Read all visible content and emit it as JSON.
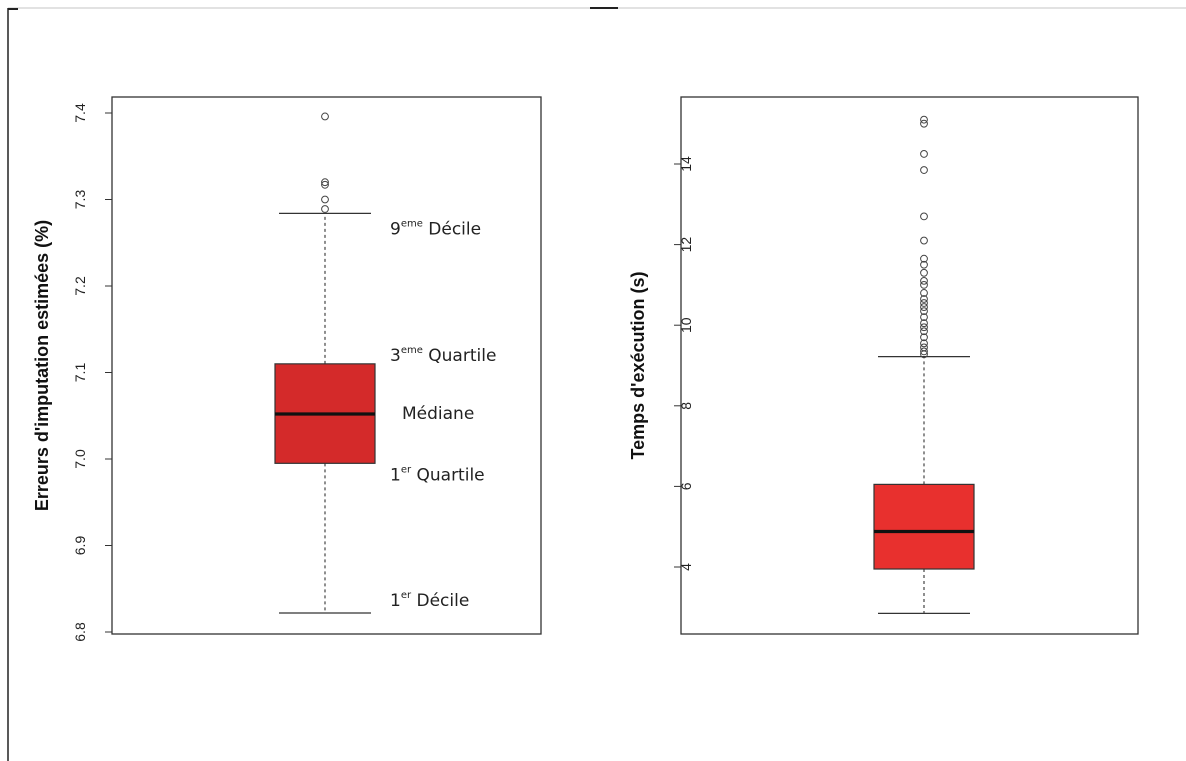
{
  "chart_data": [
    {
      "type": "box",
      "ylabel": "Erreurs d'imputation estimées (%)",
      "ylim": [
        6.8,
        7.4
      ],
      "yticks": [
        6.8,
        6.9,
        7.0,
        7.1,
        7.2,
        7.3,
        7.4
      ],
      "ytick_labels": [
        "6.8",
        "6.9",
        "7.0",
        "7.1",
        "7.2",
        "7.3",
        "7.4"
      ],
      "grid": false,
      "box": {
        "whisker_low": 6.822,
        "q1": 6.995,
        "median": 7.052,
        "q3": 7.11,
        "whisker_high": 7.284,
        "outliers": [
          7.289,
          7.3,
          7.317,
          7.32,
          7.396
        ]
      },
      "color": "#d42a2a",
      "annotations": [
        {
          "target": "whisker_high",
          "base": "9",
          "sup": "eme",
          "text": " Décile"
        },
        {
          "target": "q3",
          "base": "3",
          "sup": "eme",
          "text": " Quartile"
        },
        {
          "target": "median",
          "base": "",
          "sup": "",
          "text": "Médiane"
        },
        {
          "target": "q1",
          "base": "1",
          "sup": "er",
          "text": " Quartile"
        },
        {
          "target": "whisker_low",
          "base": "1",
          "sup": "er",
          "text": " Décile"
        }
      ]
    },
    {
      "type": "box",
      "ylabel": "Temps d'exécution (s)",
      "ylim": [
        2.3,
        15.6
      ],
      "yticks": [
        4,
        6,
        8,
        10,
        12,
        14
      ],
      "ytick_labels": [
        "4",
        "6",
        "8",
        "10",
        "12",
        "14"
      ],
      "grid": false,
      "box": {
        "whisker_low": 2.85,
        "q1": 3.95,
        "median": 4.88,
        "q3": 6.05,
        "whisker_high": 9.22,
        "outliers": [
          9.28,
          9.35,
          9.45,
          9.55,
          9.7,
          9.85,
          9.95,
          10.05,
          10.2,
          10.35,
          10.45,
          10.55,
          10.65,
          10.8,
          11.0,
          11.1,
          11.3,
          11.5,
          11.65,
          12.1,
          12.7,
          13.85,
          14.25,
          15.0,
          15.1
        ]
      },
      "color": "#e8302e",
      "annotations": []
    }
  ]
}
